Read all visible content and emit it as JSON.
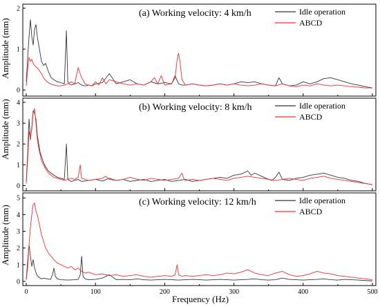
{
  "figure": {
    "xlabel": "Frequency (Hz)",
    "ylabel": "Amplitude (mm)"
  },
  "chart_data": [
    {
      "type": "line",
      "title": "(a) Working velocity: 4 km/h",
      "xlabel": "Frequency (Hz)",
      "ylabel": "Amplitude (mm)",
      "xlim": [
        -5,
        505
      ],
      "ylim": [
        -0.15,
        2.1
      ],
      "xticks": [
        "0",
        "100",
        "200",
        "300",
        "400",
        "500"
      ],
      "yticks": [
        0,
        1,
        2
      ],
      "legend_position": "top-right",
      "grid": false,
      "series": [
        {
          "name": "Idle operation",
          "color": "#333333",
          "x": [
            0,
            2,
            4,
            6,
            8,
            10,
            12,
            14,
            16,
            18,
            20,
            22,
            25,
            28,
            32,
            36,
            40,
            45,
            50,
            55,
            58,
            60,
            62,
            65,
            70,
            75,
            80,
            85,
            90,
            95,
            100,
            110,
            120,
            130,
            140,
            150,
            160,
            170,
            180,
            190,
            200,
            210,
            215,
            220,
            225,
            230,
            240,
            250,
            260,
            270,
            280,
            290,
            300,
            310,
            320,
            330,
            340,
            350,
            360,
            365,
            370,
            380,
            390,
            400,
            410,
            420,
            430,
            440,
            450,
            460,
            470,
            480,
            490,
            500
          ],
          "y": [
            0.2,
            0.8,
            1.3,
            1.72,
            1.3,
            1.1,
            1.5,
            1.6,
            1.3,
            1.1,
            0.9,
            0.7,
            0.6,
            0.65,
            0.45,
            0.3,
            0.25,
            0.2,
            0.18,
            0.15,
            1.45,
            0.2,
            0.15,
            0.12,
            0.15,
            0.18,
            0.12,
            0.1,
            0.12,
            0.1,
            0.15,
            0.18,
            0.4,
            0.15,
            0.2,
            0.25,
            0.15,
            0.12,
            0.2,
            0.15,
            0.18,
            0.15,
            0.35,
            0.15,
            0.12,
            0.12,
            0.15,
            0.12,
            0.1,
            0.12,
            0.15,
            0.12,
            0.15,
            0.2,
            0.18,
            0.2,
            0.15,
            0.12,
            0.1,
            0.3,
            0.15,
            0.1,
            0.12,
            0.2,
            0.15,
            0.2,
            0.28,
            0.3,
            0.25,
            0.2,
            0.15,
            0.12,
            0.08,
            0.05
          ]
        },
        {
          "name": "ABCD",
          "color": "#ff2a2a",
          "x": [
            0,
            2,
            4,
            6,
            8,
            10,
            12,
            15,
            18,
            22,
            25,
            30,
            35,
            40,
            45,
            50,
            55,
            60,
            65,
            70,
            75,
            80,
            85,
            90,
            95,
            100,
            105,
            110,
            115,
            120,
            130,
            140,
            150,
            160,
            170,
            180,
            185,
            190,
            195,
            200,
            210,
            215,
            218,
            220,
            222,
            225,
            230,
            240,
            250,
            260,
            270,
            280,
            290,
            300,
            310,
            320,
            330,
            340,
            350,
            360,
            370,
            380,
            390,
            400,
            410,
            420,
            430,
            440,
            450,
            460,
            470,
            480,
            490,
            500
          ],
          "y": [
            0.1,
            0.5,
            0.8,
            0.7,
            0.75,
            0.65,
            0.6,
            0.55,
            0.5,
            0.4,
            0.3,
            0.2,
            0.15,
            0.12,
            0.1,
            0.1,
            0.12,
            0.15,
            0.2,
            0.15,
            0.55,
            0.3,
            0.15,
            0.12,
            0.1,
            0.2,
            0.12,
            0.3,
            0.15,
            0.25,
            0.2,
            0.15,
            0.12,
            0.15,
            0.12,
            0.2,
            0.3,
            0.15,
            0.35,
            0.12,
            0.15,
            0.3,
            0.75,
            0.9,
            0.7,
            0.25,
            0.12,
            0.15,
            0.12,
            0.1,
            0.12,
            0.15,
            0.12,
            0.15,
            0.12,
            0.1,
            0.12,
            0.15,
            0.12,
            0.1,
            0.15,
            0.1,
            0.08,
            0.12,
            0.1,
            0.15,
            0.12,
            0.1,
            0.12,
            0.1,
            0.08,
            0.07,
            0.05,
            0.05
          ]
        }
      ]
    },
    {
      "type": "line",
      "title": "(b) Working velocity: 8 km/h",
      "xlabel": "Frequency (Hz)",
      "ylabel": "Amplitude (mm)",
      "xlim": [
        -5,
        505
      ],
      "ylim": [
        -0.25,
        4.2
      ],
      "xticks": [
        "0",
        "100",
        "200",
        "300",
        "400",
        "500"
      ],
      "yticks": [
        0,
        1,
        2,
        3,
        4
      ],
      "legend_position": "top-right",
      "grid": false,
      "series": [
        {
          "name": "Idle operation",
          "color": "#333333",
          "x": [
            0,
            2,
            4,
            6,
            8,
            10,
            12,
            14,
            16,
            18,
            20,
            22,
            25,
            28,
            32,
            36,
            40,
            45,
            50,
            55,
            58,
            60,
            62,
            65,
            70,
            75,
            80,
            90,
            100,
            110,
            120,
            130,
            140,
            150,
            160,
            170,
            180,
            190,
            200,
            210,
            220,
            230,
            240,
            250,
            260,
            270,
            280,
            290,
            300,
            310,
            320,
            325,
            330,
            340,
            350,
            355,
            360,
            365,
            370,
            380,
            390,
            400,
            410,
            420,
            430,
            440,
            450,
            460,
            470,
            480,
            490,
            500
          ],
          "y": [
            0.2,
            1.5,
            3.2,
            2.2,
            2.8,
            3.6,
            3.5,
            3.2,
            2.4,
            2.0,
            1.6,
            1.4,
            1.1,
            0.9,
            0.7,
            0.6,
            0.5,
            0.4,
            0.35,
            0.3,
            2.0,
            0.3,
            0.25,
            0.2,
            0.25,
            0.3,
            0.2,
            0.25,
            0.3,
            0.22,
            0.35,
            0.25,
            0.3,
            0.2,
            0.25,
            0.3,
            0.2,
            0.25,
            0.3,
            0.2,
            0.25,
            0.3,
            0.2,
            0.25,
            0.3,
            0.35,
            0.4,
            0.35,
            0.5,
            0.55,
            0.7,
            0.5,
            0.6,
            0.45,
            0.3,
            0.25,
            0.4,
            0.65,
            0.3,
            0.25,
            0.35,
            0.4,
            0.5,
            0.55,
            0.6,
            0.5,
            0.4,
            0.35,
            0.25,
            0.2,
            0.1,
            0.05
          ]
        },
        {
          "name": "ABCD",
          "color": "#ff2a2a",
          "x": [
            0,
            2,
            4,
            6,
            8,
            10,
            12,
            14,
            16,
            18,
            20,
            22,
            25,
            28,
            32,
            36,
            40,
            45,
            50,
            55,
            60,
            65,
            70,
            75,
            78,
            80,
            85,
            90,
            100,
            110,
            115,
            120,
            130,
            140,
            150,
            160,
            170,
            180,
            190,
            200,
            210,
            220,
            225,
            228,
            230,
            240,
            250,
            260,
            270,
            280,
            290,
            300,
            310,
            320,
            330,
            340,
            350,
            360,
            370,
            380,
            390,
            400,
            410,
            420,
            430,
            440,
            450,
            460,
            470,
            480,
            490,
            500
          ],
          "y": [
            0.1,
            1.2,
            2.6,
            2.3,
            2.7,
            3.5,
            3.7,
            3.0,
            2.2,
            1.8,
            1.5,
            1.2,
            1.0,
            0.8,
            0.6,
            0.5,
            0.4,
            0.35,
            0.3,
            0.25,
            0.3,
            0.35,
            0.3,
            0.4,
            1.0,
            0.35,
            0.3,
            0.25,
            0.3,
            0.35,
            0.45,
            0.3,
            0.25,
            0.3,
            0.4,
            0.3,
            0.25,
            0.35,
            0.3,
            0.25,
            0.3,
            0.35,
            0.6,
            0.3,
            0.25,
            0.3,
            0.25,
            0.3,
            0.35,
            0.3,
            0.25,
            0.35,
            0.4,
            0.45,
            0.4,
            0.35,
            0.3,
            0.25,
            0.3,
            0.35,
            0.3,
            0.25,
            0.35,
            0.4,
            0.45,
            0.35,
            0.3,
            0.25,
            0.2,
            0.15,
            0.1,
            0.05
          ]
        }
      ]
    },
    {
      "type": "line",
      "title": "(c) Working velocity: 12 km/h",
      "xlabel": "Frequency (Hz)",
      "ylabel": "Amplitude (mm)",
      "xlim": [
        -5,
        505
      ],
      "ylim": [
        -0.25,
        5.3
      ],
      "xticks": [
        "0",
        "100",
        "200",
        "300",
        "400",
        "500"
      ],
      "yticks": [
        0,
        1,
        2,
        3,
        4,
        5
      ],
      "legend_position": "top-right",
      "grid": false,
      "series": [
        {
          "name": "Idle operation",
          "color": "#333333",
          "x": [
            0,
            2,
            4,
            6,
            8,
            10,
            12,
            15,
            18,
            22,
            25,
            30,
            35,
            38,
            40,
            42,
            45,
            50,
            60,
            70,
            75,
            78,
            80,
            82,
            85,
            90,
            100,
            110,
            120,
            130,
            140,
            150,
            160,
            170,
            180,
            190,
            200,
            210,
            220,
            230,
            240,
            250,
            260,
            270,
            280,
            290,
            300,
            310,
            320,
            330,
            340,
            350,
            360,
            370,
            380,
            390,
            400,
            410,
            420,
            430,
            440,
            450,
            460,
            470,
            480,
            490,
            500
          ],
          "y": [
            0.1,
            1.2,
            2.2,
            1.5,
            0.9,
            1.3,
            0.8,
            0.4,
            0.25,
            0.15,
            0.2,
            0.15,
            0.12,
            0.4,
            0.8,
            0.3,
            0.15,
            0.1,
            0.08,
            0.1,
            0.12,
            0.4,
            1.5,
            0.3,
            0.15,
            0.1,
            0.12,
            0.2,
            0.4,
            0.1,
            0.12,
            0.1,
            0.15,
            0.1,
            0.08,
            0.1,
            0.12,
            0.1,
            0.08,
            0.1,
            0.12,
            0.1,
            0.08,
            0.1,
            0.12,
            0.1,
            0.08,
            0.1,
            0.12,
            0.15,
            0.1,
            0.08,
            0.1,
            0.2,
            0.12,
            0.1,
            0.08,
            0.1,
            0.12,
            0.15,
            0.1,
            0.08,
            0.12,
            0.1,
            0.08,
            0.05,
            0.03
          ]
        },
        {
          "name": "ABCD",
          "color": "#ff2a2a",
          "x": [
            0,
            2,
            4,
            6,
            8,
            10,
            12,
            14,
            16,
            18,
            20,
            22,
            25,
            28,
            32,
            36,
            40,
            45,
            50,
            55,
            60,
            65,
            70,
            75,
            80,
            85,
            90,
            100,
            110,
            120,
            130,
            140,
            150,
            160,
            170,
            180,
            190,
            200,
            210,
            215,
            218,
            220,
            225,
            230,
            240,
            250,
            260,
            270,
            280,
            290,
            300,
            310,
            320,
            330,
            340,
            350,
            360,
            370,
            380,
            390,
            400,
            410,
            420,
            430,
            440,
            450,
            460,
            470,
            480,
            490,
            500
          ],
          "y": [
            0.1,
            0.8,
            2.2,
            3.2,
            4.0,
            4.6,
            4.7,
            4.2,
            4.0,
            3.6,
            3.2,
            2.8,
            2.4,
            2.0,
            1.7,
            1.5,
            1.3,
            1.1,
            1.0,
            0.9,
            0.8,
            0.9,
            0.7,
            0.8,
            0.6,
            0.5,
            0.55,
            0.4,
            0.45,
            0.35,
            0.4,
            0.3,
            0.35,
            0.4,
            0.3,
            0.25,
            0.3,
            0.35,
            0.3,
            0.4,
            1.0,
            0.4,
            0.3,
            0.35,
            0.3,
            0.35,
            0.4,
            0.35,
            0.4,
            0.5,
            0.45,
            0.55,
            0.7,
            0.5,
            0.4,
            0.35,
            0.5,
            0.6,
            0.4,
            0.3,
            0.35,
            0.45,
            0.6,
            0.5,
            0.45,
            0.35,
            0.3,
            0.25,
            0.2,
            0.15,
            0.1
          ]
        }
      ]
    }
  ]
}
